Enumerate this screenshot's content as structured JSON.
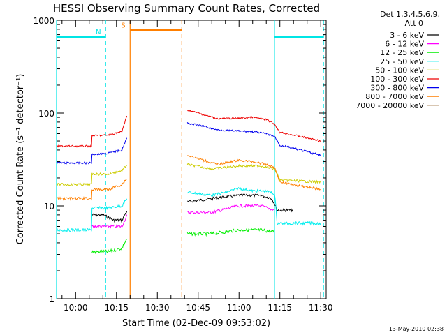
{
  "chart_data": {
    "type": "line",
    "title": "HESSI Observing Summary Count Rates, Corrected",
    "xlabel": "Start Time (02-Dec-09 09:53:02)",
    "ylabel": "Corrected Count Rate (s⁻¹ detector⁻¹)",
    "yscale": "log",
    "ylim": [
      1,
      1000
    ],
    "xlim": [
      "09:53",
      "11:32"
    ],
    "x_ticks": [
      "10:00",
      "10:15",
      "10:30",
      "10:45",
      "11:00",
      "11:15",
      "11:30"
    ],
    "y_ticks": [
      "1",
      "10",
      "100",
      "1000"
    ],
    "legend_header": [
      "Det 1,3,4,5,6,9,",
      "Att 0"
    ],
    "legend_position": "right",
    "footer_date": "13-May-2010 02:38",
    "flags": [
      {
        "label": "N",
        "color": "#00e5e5",
        "segments": [
          [
            "09:53",
            "10:11"
          ],
          [
            "11:13",
            "11:31"
          ]
        ],
        "value": 660
      },
      {
        "label": "S",
        "color": "#ff7f00",
        "segments": [
          [
            "10:20",
            "10:39"
          ]
        ],
        "value": 780
      }
    ],
    "vertical_markers": [
      {
        "time": "09:53",
        "color": "#00e5e5",
        "style": "solid"
      },
      {
        "time": "10:11",
        "color": "#00e5e5",
        "style": "dashed"
      },
      {
        "time": "10:20",
        "color": "#ff7f00",
        "style": "solid"
      },
      {
        "time": "10:39",
        "color": "#ff7f00",
        "style": "dashed"
      },
      {
        "time": "11:13",
        "color": "#00e5e5",
        "style": "solid"
      },
      {
        "time": "11:31",
        "color": "#00e5e5",
        "style": "dashed"
      }
    ],
    "series": [
      {
        "name": "3 - 6 keV",
        "color": "#000000",
        "segments": [
          {
            "start": "10:06",
            "end": "10:19",
            "points": [
              [
                "10:06",
                8
              ],
              [
                "10:10",
                8
              ],
              [
                "10:14",
                7
              ],
              [
                "10:17",
                7
              ],
              [
                "10:19",
                9
              ]
            ]
          },
          {
            "start": "10:41",
            "end": "11:20",
            "points": [
              [
                "10:41",
                11
              ],
              [
                "10:50",
                12
              ],
              [
                "11:00",
                13
              ],
              [
                "11:08",
                13
              ],
              [
                "11:12",
                12
              ],
              [
                "11:14",
                9
              ],
              [
                "11:20",
                9
              ]
            ]
          }
        ]
      },
      {
        "name": "6 - 12 keV",
        "color": "#ff00ff",
        "segments": [
          {
            "start": "10:06",
            "end": "10:19",
            "points": [
              [
                "10:06",
                6
              ],
              [
                "10:12",
                6
              ],
              [
                "10:17",
                6
              ],
              [
                "10:19",
                8
              ]
            ]
          },
          {
            "start": "10:41",
            "end": "11:13",
            "points": [
              [
                "10:41",
                8.5
              ],
              [
                "10:50",
                8.5
              ],
              [
                "11:00",
                10
              ],
              [
                "11:08",
                10
              ],
              [
                "11:13",
                9
              ]
            ]
          }
        ]
      },
      {
        "name": "12 - 25 keV",
        "color": "#00ee00",
        "segments": [
          {
            "start": "10:06",
            "end": "10:19",
            "points": [
              [
                "10:06",
                3.2
              ],
              [
                "10:12",
                3.2
              ],
              [
                "10:17",
                3.5
              ],
              [
                "10:19",
                4.5
              ]
            ]
          },
          {
            "start": "10:41",
            "end": "11:13",
            "points": [
              [
                "10:41",
                5
              ],
              [
                "10:50",
                5
              ],
              [
                "11:00",
                5.5
              ],
              [
                "11:08",
                5.5
              ],
              [
                "11:13",
                5.2
              ]
            ]
          }
        ]
      },
      {
        "name": "25 - 50 keV",
        "color": "#00eeee",
        "segments": [
          {
            "start": "09:53",
            "end": "10:19",
            "points": [
              [
                "09:53",
                5.5
              ],
              [
                "10:06",
                5.5
              ],
              [
                "10:06",
                9.5
              ],
              [
                "10:12",
                9.5
              ],
              [
                "10:17",
                10
              ],
              [
                "10:19",
                12
              ]
            ]
          },
          {
            "start": "10:41",
            "end": "11:31",
            "points": [
              [
                "10:41",
                14
              ],
              [
                "10:50",
                13
              ],
              [
                "10:55",
                14
              ],
              [
                "11:00",
                15.5
              ],
              [
                "11:05",
                14.5
              ],
              [
                "11:10",
                14.5
              ],
              [
                "11:13",
                13.5
              ],
              [
                "11:14",
                6.5
              ],
              [
                "11:30",
                6.5
              ]
            ]
          }
        ]
      },
      {
        "name": "50 - 100 keV",
        "color": "#cccc00",
        "segments": [
          {
            "start": "09:53",
            "end": "10:19",
            "points": [
              [
                "09:53",
                17
              ],
              [
                "10:06",
                17
              ],
              [
                "10:06",
                22
              ],
              [
                "10:12",
                22
              ],
              [
                "10:17",
                24
              ],
              [
                "10:19",
                28
              ]
            ]
          },
          {
            "start": "10:41",
            "end": "11:31",
            "points": [
              [
                "10:41",
                28
              ],
              [
                "10:50",
                25
              ],
              [
                "11:00",
                27
              ],
              [
                "11:08",
                27
              ],
              [
                "11:13",
                25
              ],
              [
                "11:15",
                19
              ],
              [
                "11:30",
                18
              ]
            ]
          }
        ]
      },
      {
        "name": "100 - 300 keV",
        "color": "#ee0000",
        "segments": [
          {
            "start": "09:53",
            "end": "10:19",
            "points": [
              [
                "09:53",
                44
              ],
              [
                "10:06",
                44
              ],
              [
                "10:06",
                57
              ],
              [
                "10:12",
                58
              ],
              [
                "10:17",
                63
              ],
              [
                "10:19",
                95
              ]
            ]
          },
          {
            "start": "10:41",
            "end": "11:31",
            "points": [
              [
                "10:41",
                108
              ],
              [
                "10:47",
                96
              ],
              [
                "10:52",
                87
              ],
              [
                "11:00",
                88
              ],
              [
                "11:05",
                90
              ],
              [
                "11:10",
                85
              ],
              [
                "11:13",
                76
              ],
              [
                "11:15",
                62
              ],
              [
                "11:30",
                50
              ]
            ]
          }
        ]
      },
      {
        "name": "300 - 800 keV",
        "color": "#0000ee",
        "segments": [
          {
            "start": "09:53",
            "end": "10:19",
            "points": [
              [
                "09:53",
                29
              ],
              [
                "10:06",
                29
              ],
              [
                "10:06",
                36
              ],
              [
                "10:12",
                37
              ],
              [
                "10:17",
                40
              ],
              [
                "10:19",
                55
              ]
            ]
          },
          {
            "start": "10:41",
            "end": "11:31",
            "points": [
              [
                "10:41",
                78
              ],
              [
                "10:47",
                72
              ],
              [
                "10:52",
                66
              ],
              [
                "11:00",
                64
              ],
              [
                "11:05",
                63
              ],
              [
                "11:10",
                60
              ],
              [
                "11:13",
                56
              ],
              [
                "11:15",
                45
              ],
              [
                "11:30",
                35
              ]
            ]
          }
        ]
      },
      {
        "name": "800 - 7000 keV",
        "color": "#ff7f00",
        "segments": [
          {
            "start": "09:53",
            "end": "10:19",
            "points": [
              [
                "09:53",
                12
              ],
              [
                "10:06",
                12
              ],
              [
                "10:06",
                15
              ],
              [
                "10:12",
                15
              ],
              [
                "10:17",
                17
              ],
              [
                "10:19",
                20
              ]
            ]
          },
          {
            "start": "10:41",
            "end": "11:31",
            "points": [
              [
                "10:41",
                35
              ],
              [
                "10:47",
                31
              ],
              [
                "10:52",
                28
              ],
              [
                "11:00",
                31
              ],
              [
                "11:05",
                30
              ],
              [
                "11:10",
                28
              ],
              [
                "11:13",
                26
              ],
              [
                "11:15",
                18
              ],
              [
                "11:30",
                15
              ]
            ]
          }
        ]
      },
      {
        "name": "7000 - 20000 keV",
        "color": "#996633",
        "segments": []
      }
    ]
  }
}
